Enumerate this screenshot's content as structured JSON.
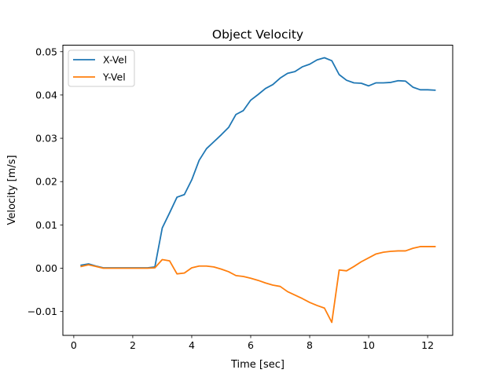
{
  "chart_data": {
    "type": "line",
    "title": "Object Velocity",
    "xlabel": "Time [sec]",
    "ylabel": "Velocity [m/s]",
    "xlim": [
      -0.37,
      12.85
    ],
    "ylim": [
      -0.0155,
      0.0515
    ],
    "xticks": [
      0,
      2,
      4,
      6,
      8,
      10,
      12
    ],
    "xtick_labels": [
      "0",
      "2",
      "4",
      "6",
      "8",
      "10",
      "12"
    ],
    "yticks": [
      -0.01,
      0.0,
      0.01,
      0.02,
      0.03,
      0.04,
      0.05
    ],
    "ytick_labels": [
      "−0.01",
      "0.00",
      "0.01",
      "0.02",
      "0.03",
      "0.04",
      "0.05"
    ],
    "grid": false,
    "legend_position": "top-left",
    "series": [
      {
        "name": "X-Vel",
        "color": "#1f77b4",
        "x": [
          0.25,
          0.5,
          0.75,
          1.0,
          1.25,
          1.5,
          1.75,
          2.0,
          2.25,
          2.5,
          2.75,
          3.0,
          3.25,
          3.5,
          3.75,
          4.0,
          4.25,
          4.5,
          4.75,
          5.0,
          5.25,
          5.5,
          5.75,
          6.0,
          6.25,
          6.5,
          6.75,
          7.0,
          7.25,
          7.5,
          7.75,
          8.0,
          8.25,
          8.5,
          8.75,
          9.0,
          9.25,
          9.5,
          9.75,
          10.0,
          10.25,
          10.5,
          10.75,
          11.0,
          11.25,
          11.5,
          11.75,
          12.0,
          12.25
        ],
        "values": [
          0.0007,
          0.001,
          0.0005,
          0.0001,
          0.0001,
          0.0001,
          0.0001,
          0.0001,
          0.0001,
          0.0001,
          0.0003,
          0.0093,
          0.0128,
          0.0164,
          0.017,
          0.0204,
          0.0249,
          0.0276,
          0.0292,
          0.0308,
          0.0325,
          0.0355,
          0.0364,
          0.0388,
          0.0401,
          0.0415,
          0.0424,
          0.0439,
          0.045,
          0.0454,
          0.0465,
          0.0471,
          0.0481,
          0.0486,
          0.0479,
          0.0447,
          0.0434,
          0.0428,
          0.0427,
          0.0421,
          0.0428,
          0.0428,
          0.0429,
          0.0433,
          0.0432,
          0.0418,
          0.0412,
          0.0412,
          0.0411
        ]
      },
      {
        "name": "Y-Vel",
        "color": "#ff7f0e",
        "x": [
          0.25,
          0.5,
          0.75,
          1.0,
          1.25,
          1.5,
          1.75,
          2.0,
          2.25,
          2.5,
          2.75,
          3.0,
          3.25,
          3.5,
          3.75,
          4.0,
          4.25,
          4.5,
          4.75,
          5.0,
          5.25,
          5.5,
          5.75,
          6.0,
          6.25,
          6.5,
          6.75,
          7.0,
          7.25,
          7.5,
          7.75,
          8.0,
          8.25,
          8.5,
          8.75,
          9.0,
          9.25,
          9.5,
          9.75,
          10.0,
          10.25,
          10.5,
          10.75,
          11.0,
          11.25,
          11.5,
          11.75,
          12.0,
          12.25
        ],
        "values": [
          0.0004,
          0.0008,
          0.0004,
          0.0,
          0.0,
          0.0,
          0.0,
          0.0,
          0.0,
          0.0,
          0.0001,
          0.002,
          0.0017,
          -0.0013,
          -0.0011,
          0.0001,
          0.0005,
          0.0005,
          0.0003,
          -0.0002,
          -0.0008,
          -0.0017,
          -0.0019,
          -0.0023,
          -0.0028,
          -0.0034,
          -0.0039,
          -0.0042,
          -0.0054,
          -0.0062,
          -0.007,
          -0.0079,
          -0.0086,
          -0.0092,
          -0.0125,
          -0.0004,
          -0.0006,
          0.0004,
          0.0015,
          0.0024,
          0.0033,
          0.0037,
          0.0039,
          0.004,
          0.004,
          0.0046,
          0.005,
          0.005,
          0.005
        ]
      }
    ]
  }
}
